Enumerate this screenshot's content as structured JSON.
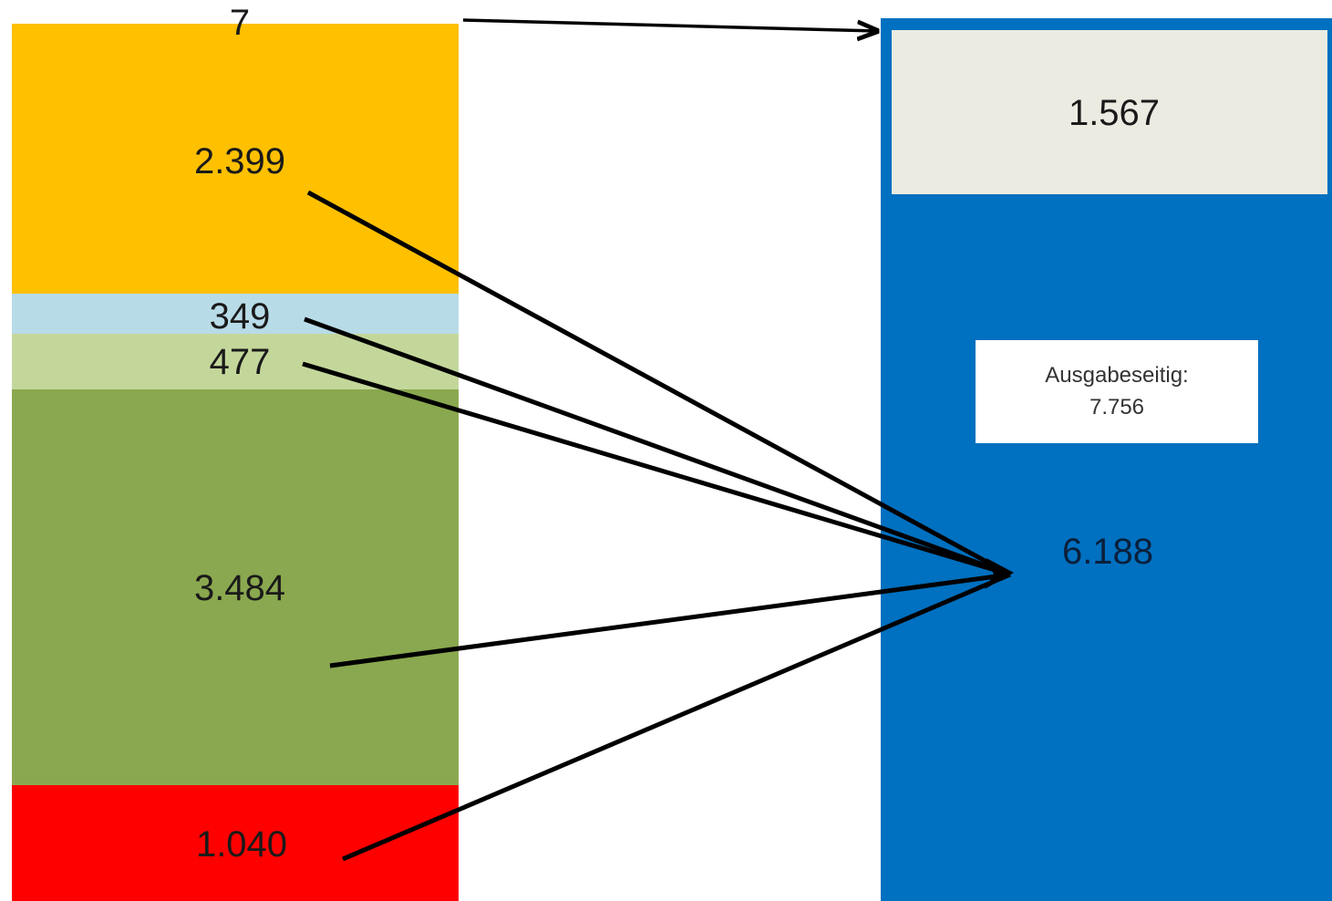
{
  "left_stack": [
    {
      "id": "seg-7",
      "value": 7,
      "label": "7",
      "color": "#ffffff"
    },
    {
      "id": "seg-2399",
      "value": 2399,
      "label": "2.399",
      "color": "#ffc000"
    },
    {
      "id": "seg-349",
      "value": 349,
      "label": "349",
      "color": "#b8dbe8"
    },
    {
      "id": "seg-477",
      "value": 477,
      "label": "477",
      "color": "#c4d79b"
    },
    {
      "id": "seg-3484",
      "value": 3484,
      "label": "3.484",
      "color": "#8aa84f"
    },
    {
      "id": "seg-1040",
      "value": 1040,
      "label": "1.040",
      "color": "#ff0000"
    }
  ],
  "right_stack": [
    {
      "id": "seg-1567",
      "value": 1567,
      "label": "1.567",
      "color": "#ecebe2"
    },
    {
      "id": "seg-6188",
      "value": 6188,
      "label": "6.188",
      "color": "#0070c0"
    }
  ],
  "annotation": {
    "line1": "Ausgabeseitig:",
    "line2": "7.756"
  },
  "colors": {
    "frame_blue": "#0070c0",
    "arrow": "#000000"
  }
}
